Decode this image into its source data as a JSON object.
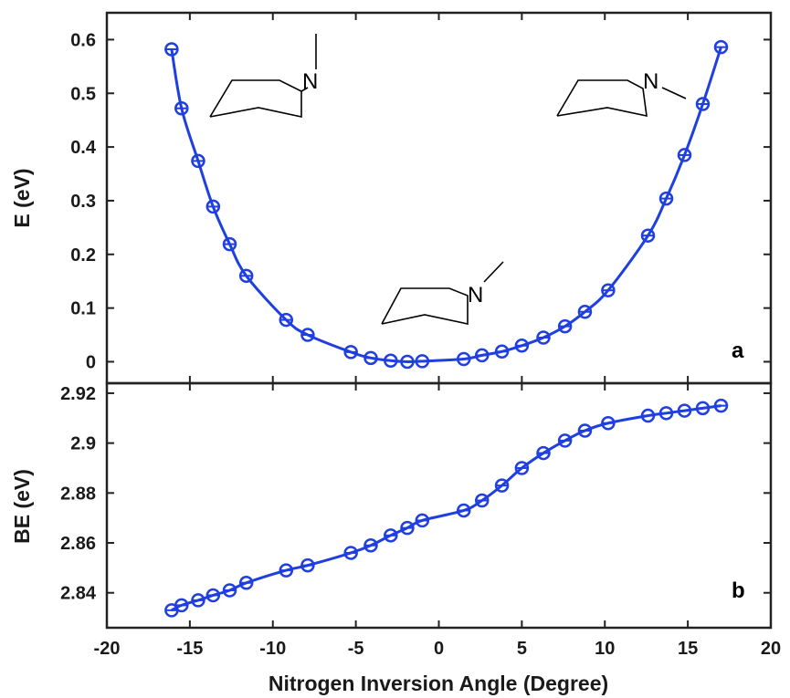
{
  "chart_data": [
    {
      "type": "line",
      "panel_label": "a",
      "xlabel": "Nitrogen Inversion Angle (Degree)",
      "ylabel": "E (eV)",
      "xlim": [
        -20,
        20
      ],
      "ylim": [
        -0.04,
        0.65
      ],
      "yticks": [
        "0",
        "0.1",
        "0.2",
        "0.3",
        "0.4",
        "0.5",
        "0.6"
      ],
      "series": [
        {
          "x": [
            -16.1,
            -15.5,
            -14.5,
            -13.6,
            -12.6,
            -11.6,
            -9.2,
            -7.9,
            -5.3,
            -4.1,
            -2.9,
            -1.9,
            -1.0,
            1.5,
            2.6,
            3.8,
            5.0,
            6.3,
            7.6,
            8.8,
            10.2,
            12.6,
            13.7,
            14.8,
            15.9,
            17.0
          ],
          "y": [
            0.582,
            0.472,
            0.374,
            0.289,
            0.219,
            0.16,
            0.078,
            0.05,
            0.018,
            0.007,
            0.002,
            0.0,
            0.001,
            0.005,
            0.012,
            0.019,
            0.03,
            0.045,
            0.066,
            0.093,
            0.133,
            0.235,
            0.304,
            0.385,
            0.48,
            0.586
          ]
        }
      ],
      "annotations": [
        "N",
        "N",
        "N"
      ],
      "grid": false
    },
    {
      "type": "line",
      "panel_label": "b",
      "xlabel": "Nitrogen Inversion Angle (Degree)",
      "ylabel": "BE (eV)",
      "xlim": [
        -20,
        20
      ],
      "ylim": [
        2.826,
        2.924
      ],
      "xticks": [
        "-20",
        "-15",
        "-10",
        "-5",
        "0",
        "5",
        "10",
        "15",
        "20"
      ],
      "yticks": [
        "2.84",
        "2.86",
        "2.88",
        "2.9",
        "2.92"
      ],
      "series": [
        {
          "x": [
            -16.1,
            -15.5,
            -14.5,
            -13.6,
            -12.6,
            -11.6,
            -9.2,
            -7.9,
            -5.3,
            -4.1,
            -2.9,
            -1.9,
            -1.0,
            1.5,
            2.6,
            3.8,
            5.0,
            6.3,
            7.6,
            8.8,
            10.2,
            12.6,
            13.7,
            14.8,
            15.9,
            17.0
          ],
          "y": [
            2.833,
            2.835,
            2.837,
            2.839,
            2.841,
            2.844,
            2.849,
            2.851,
            2.856,
            2.859,
            2.863,
            2.866,
            2.869,
            2.873,
            2.877,
            2.883,
            2.89,
            2.896,
            2.901,
            2.905,
            2.908,
            2.911,
            2.912,
            2.913,
            2.914,
            2.915
          ]
        }
      ],
      "grid": false
    }
  ],
  "colors": {
    "series": "#1f3fe0",
    "axis": "#222222"
  }
}
